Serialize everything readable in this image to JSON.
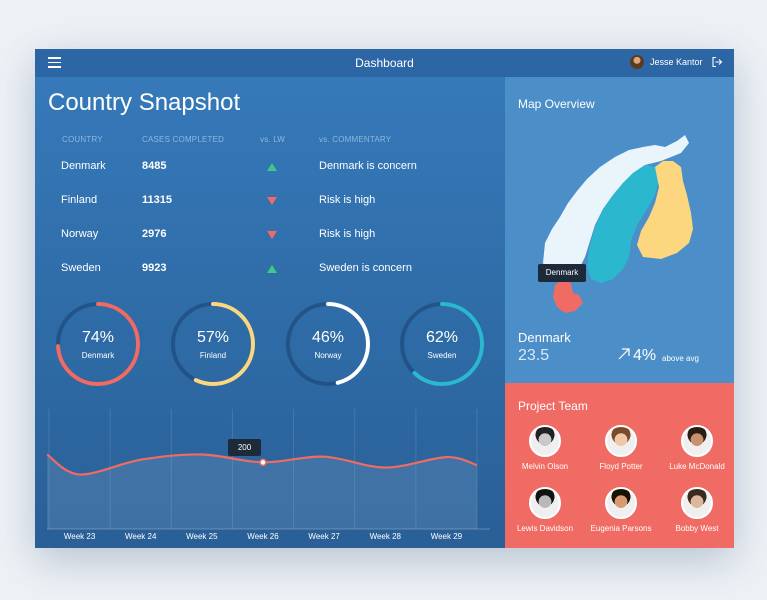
{
  "header": {
    "title": "Dashboard",
    "user_name": "Jesse Kantor"
  },
  "main": {
    "title": "Country Snapshot",
    "columns": [
      "COUNTRY",
      "CASES COMPLETED",
      "vs. LW",
      "vs. COMMENTARY"
    ],
    "rows": [
      {
        "country": "Denmark",
        "cases": "8485",
        "trend": "up",
        "comment": "Denmark is concern"
      },
      {
        "country": "Finland",
        "cases": "11315",
        "trend": "down",
        "comment": "Risk is high"
      },
      {
        "country": "Norway",
        "cases": "2976",
        "trend": "down",
        "comment": "Risk is high"
      },
      {
        "country": "Sweden",
        "cases": "9923",
        "trend": "up",
        "comment": "Sweden is concern"
      }
    ],
    "donuts": [
      {
        "pct_label": "74%",
        "value": 0.74,
        "label": "Denmark",
        "color": "#ef6b64"
      },
      {
        "pct_label": "57%",
        "value": 0.57,
        "label": "Finland",
        "color": "#fcd77f"
      },
      {
        "pct_label": "46%",
        "value": 0.46,
        "label": "Norway",
        "color": "#ffffff"
      },
      {
        "pct_label": "62%",
        "value": 0.62,
        "label": "Sweden",
        "color": "#2bb8cf"
      }
    ]
  },
  "chart_data": {
    "type": "line",
    "x": [
      "Week 23",
      "Week 24",
      "Week 25",
      "Week 26",
      "Week 27",
      "Week 28",
      "Week 29"
    ],
    "series": [
      {
        "values": [
          172,
          206,
          218,
          200,
          213,
          188,
          212
        ]
      }
    ],
    "ylim": [
      0,
      300
    ],
    "tooltip": {
      "index": 3,
      "label": "200"
    },
    "grid": true,
    "line_color": "#ef6b64"
  },
  "map": {
    "title": "Map Overview",
    "tooltip": "Denmark",
    "country": "Denmark",
    "value": "23.5",
    "change": "4%",
    "change_note": "above avg",
    "colors": {
      "norway": "#eaf5fb",
      "sweden": "#2bb8cf",
      "finland": "#fcd77f",
      "denmark": "#ef6b64"
    }
  },
  "team": {
    "title": "Project Team",
    "members": [
      {
        "name": "Melvin Olson",
        "hair": "#222222",
        "skin": "#c9c9c9"
      },
      {
        "name": "Floyd Potter",
        "hair": "#7a4a2a",
        "skin": "#f1c7a8"
      },
      {
        "name": "Luke McDonald",
        "hair": "#2b1d14",
        "skin": "#c8916b"
      },
      {
        "name": "Lewis Davidson",
        "hair": "#111111",
        "skin": "#b9b9b9"
      },
      {
        "name": "Eugenia Parsons",
        "hair": "#1a1200",
        "skin": "#d99a72"
      },
      {
        "name": "Bobby West",
        "hair": "#3b2a1f",
        "skin": "#ddb79b"
      }
    ]
  }
}
